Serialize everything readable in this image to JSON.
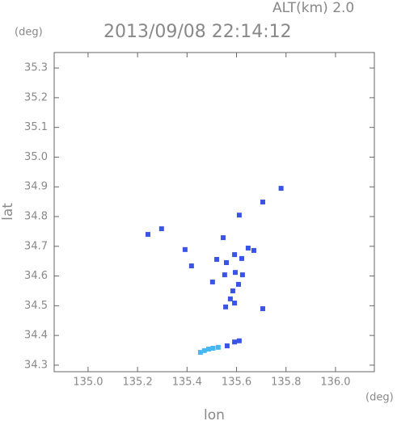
{
  "chart_data": {
    "type": "scatter",
    "title": "2013/09/08 22:14:12",
    "subtitle": "ALT(km) 2.0",
    "y_unit": "(deg)",
    "x_unit": "(deg)",
    "x_label": "lon",
    "y_label": "lat",
    "xlim": [
      134.863,
      136.157
    ],
    "ylim": [
      34.278,
      35.352
    ],
    "xticks": [
      {
        "value": 135,
        "label": "135.0"
      },
      135.2,
      135.4,
      135.6,
      135.8,
      {
        "value": 136,
        "label": "136.0"
      }
    ],
    "yticks": [
      34.3,
      34.4,
      34.5,
      34.6,
      34.7,
      34.8,
      34.9,
      {
        "value": 35,
        "label": "35.0"
      },
      35.1,
      35.2,
      35.3
    ],
    "series": [
      {
        "color": "#3a55e6",
        "x": [
          135.78,
          135.706,
          135.611,
          135.242,
          135.297,
          135.546,
          135.392,
          135.647,
          135.67,
          135.592,
          135.52,
          135.559,
          135.621,
          135.418,
          135.595,
          135.552,
          135.624,
          135.608,
          135.503,
          135.585,
          135.575,
          135.592,
          135.706,
          135.556,
          135.611,
          135.592,
          135.562
        ],
        "values": [
          34.895,
          34.849,
          34.805,
          34.74,
          34.759,
          34.729,
          34.689,
          34.694,
          34.686,
          34.672,
          34.656,
          34.645,
          34.659,
          34.634,
          34.612,
          34.604,
          34.604,
          34.572,
          34.58,
          34.55,
          34.523,
          34.509,
          34.49,
          34.496,
          34.382,
          34.378,
          34.365
        ]
      },
      {
        "color": "#45b8f0",
        "x": [
          135.526,
          135.487,
          135.454,
          135.505,
          135.47
        ],
        "values": [
          34.36,
          34.354,
          34.343,
          34.357,
          34.349
        ]
      }
    ]
  }
}
